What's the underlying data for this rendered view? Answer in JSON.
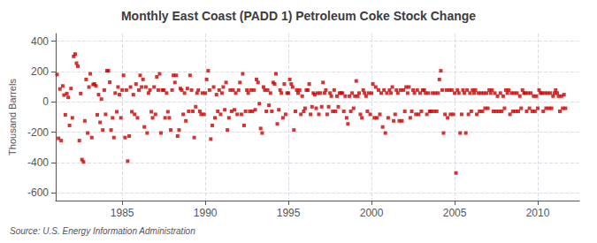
{
  "chart_data": {
    "type": "scatter",
    "title": "Monthly East Coast (PADD 1) Petroleum Coke Stock Change",
    "ylabel": "Thousand Barrels",
    "annotations": [
      "Source: U.S. Energy Information Administration"
    ],
    "color": "#cc0000",
    "marker": "square",
    "grid": true,
    "xlim": [
      1981.0,
      2012.5
    ],
    "ylim": [
      -650,
      450
    ],
    "xticks": [
      1985,
      1990,
      1995,
      2000,
      2005,
      2010
    ],
    "yticks": [
      -600,
      -400,
      -200,
      0,
      200,
      400
    ],
    "x": [
      1981.08,
      1981.17,
      1981.25,
      1981.33,
      1981.42,
      1981.5,
      1981.58,
      1981.67,
      1981.75,
      1981.83,
      1981.92,
      1982.0,
      1982.08,
      1982.17,
      1982.25,
      1982.33,
      1982.42,
      1982.5,
      1982.58,
      1982.67,
      1982.75,
      1982.83,
      1982.92,
      1983.0,
      1983.08,
      1983.17,
      1983.25,
      1983.33,
      1983.42,
      1983.5,
      1983.58,
      1983.67,
      1983.75,
      1983.83,
      1983.92,
      1984.0,
      1984.08,
      1984.17,
      1984.25,
      1984.33,
      1984.42,
      1984.5,
      1984.58,
      1984.67,
      1984.75,
      1984.83,
      1984.92,
      1985.0,
      1985.08,
      1985.17,
      1985.25,
      1985.33,
      1985.42,
      1985.5,
      1985.58,
      1985.67,
      1985.75,
      1985.83,
      1985.92,
      1986.0,
      1986.08,
      1986.17,
      1986.25,
      1986.33,
      1986.42,
      1986.5,
      1986.58,
      1986.67,
      1986.75,
      1986.83,
      1986.92,
      1987.0,
      1987.08,
      1987.17,
      1987.25,
      1987.33,
      1987.42,
      1987.5,
      1987.58,
      1987.67,
      1987.75,
      1987.83,
      1987.92,
      1988.0,
      1988.08,
      1988.17,
      1988.25,
      1988.33,
      1988.42,
      1988.5,
      1988.58,
      1988.67,
      1988.75,
      1988.83,
      1988.92,
      1989.0,
      1989.08,
      1989.17,
      1989.25,
      1989.33,
      1989.42,
      1989.5,
      1989.58,
      1989.67,
      1989.75,
      1989.83,
      1989.92,
      1990.0,
      1990.08,
      1990.17,
      1990.25,
      1990.33,
      1990.42,
      1990.5,
      1990.58,
      1990.67,
      1990.75,
      1990.83,
      1990.92,
      1991.0,
      1991.08,
      1991.17,
      1991.25,
      1991.33,
      1991.42,
      1991.5,
      1991.58,
      1991.67,
      1991.75,
      1991.83,
      1991.92,
      1992.0,
      1992.08,
      1992.17,
      1992.25,
      1992.33,
      1992.42,
      1992.5,
      1992.58,
      1992.67,
      1992.75,
      1992.83,
      1992.92,
      1993.0,
      1993.08,
      1993.17,
      1993.25,
      1993.33,
      1993.42,
      1993.5,
      1993.58,
      1993.67,
      1993.75,
      1993.83,
      1993.92,
      1994.0,
      1994.08,
      1994.17,
      1994.25,
      1994.33,
      1994.42,
      1994.5,
      1994.58,
      1994.67,
      1994.75,
      1994.83,
      1994.92,
      1995.0,
      1995.08,
      1995.17,
      1995.25,
      1995.33,
      1995.42,
      1995.5,
      1995.58,
      1995.67,
      1995.75,
      1995.83,
      1995.92,
      1996.0,
      1996.08,
      1996.17,
      1996.25,
      1996.33,
      1996.42,
      1996.5,
      1996.58,
      1996.67,
      1996.75,
      1996.83,
      1996.92,
      1997.0,
      1997.08,
      1997.17,
      1997.25,
      1997.33,
      1997.42,
      1997.5,
      1997.58,
      1997.67,
      1997.75,
      1997.83,
      1997.92,
      1998.0,
      1998.08,
      1998.17,
      1998.25,
      1998.33,
      1998.42,
      1998.5,
      1998.58,
      1998.67,
      1998.75,
      1998.83,
      1998.92,
      1999.0,
      1999.08,
      1999.17,
      1999.25,
      1999.33,
      1999.42,
      1999.5,
      1999.58,
      1999.67,
      1999.75,
      1999.83,
      1999.92,
      2000.0,
      2000.08,
      2000.17,
      2000.25,
      2000.33,
      2000.42,
      2000.5,
      2000.58,
      2000.67,
      2000.75,
      2000.83,
      2000.92,
      2001.0,
      2001.08,
      2001.17,
      2001.25,
      2001.33,
      2001.42,
      2001.5,
      2001.58,
      2001.67,
      2001.75,
      2001.83,
      2001.92,
      2002.0,
      2002.08,
      2002.17,
      2002.25,
      2002.33,
      2002.42,
      2002.5,
      2002.58,
      2002.67,
      2002.75,
      2002.83,
      2002.92,
      2003.0,
      2003.08,
      2003.17,
      2003.25,
      2003.33,
      2003.42,
      2003.5,
      2003.58,
      2003.67,
      2003.75,
      2003.83,
      2003.92,
      2004.0,
      2004.08,
      2004.17,
      2004.25,
      2004.33,
      2004.42,
      2004.5,
      2004.58,
      2004.67,
      2004.75,
      2004.83,
      2004.92,
      2005.0,
      2005.08,
      2005.17,
      2005.25,
      2005.33,
      2005.42,
      2005.5,
      2005.58,
      2005.67,
      2005.75,
      2005.83,
      2005.92,
      2006.0,
      2006.08,
      2006.17,
      2006.25,
      2006.33,
      2006.42,
      2006.5,
      2006.58,
      2006.67,
      2006.75,
      2006.83,
      2006.92,
      2007.0,
      2007.08,
      2007.17,
      2007.25,
      2007.33,
      2007.42,
      2007.5,
      2007.58,
      2007.67,
      2007.75,
      2007.83,
      2007.92,
      2008.0,
      2008.08,
      2008.17,
      2008.25,
      2008.33,
      2008.42,
      2008.5,
      2008.58,
      2008.67,
      2008.75,
      2008.83,
      2008.92,
      2009.0,
      2009.08,
      2009.17,
      2009.25,
      2009.33,
      2009.42,
      2009.5,
      2009.58,
      2009.67,
      2009.75,
      2009.83,
      2009.92,
      2010.0,
      2010.08,
      2010.17,
      2010.25,
      2010.33,
      2010.42,
      2010.5,
      2010.58,
      2010.67,
      2010.75,
      2010.83,
      2010.92,
      2011.0,
      2011.08,
      2011.17,
      2011.25,
      2011.33,
      2011.42,
      2011.5,
      2011.58,
      2011.67
    ],
    "values": [
      180,
      -240,
      85,
      -255,
      105,
      45,
      -85,
      55,
      30,
      -155,
      88,
      -105,
      300,
      315,
      255,
      235,
      -255,
      55,
      -380,
      -395,
      -125,
      148,
      -205,
      98,
      185,
      -235,
      115,
      118,
      105,
      -85,
      48,
      -135,
      18,
      -185,
      78,
      -82,
      205,
      205,
      130,
      -185,
      -105,
      -235,
      58,
      -65,
      98,
      48,
      -105,
      78,
      175,
      -235,
      78,
      -390,
      -225,
      98,
      -65,
      48,
      -82,
      118,
      -105,
      78,
      175,
      98,
      148,
      -165,
      98,
      -205,
      58,
      78,
      -65,
      -105,
      98,
      -82,
      165,
      78,
      185,
      -205,
      78,
      78,
      -105,
      58,
      -65,
      -105,
      -185,
      78,
      175,
      128,
      175,
      -225,
      -185,
      88,
      78,
      -82,
      58,
      -125,
      88,
      -62,
      175,
      78,
      -62,
      -235,
      -32,
      58,
      78,
      -62,
      -82,
      58,
      -82,
      58,
      148,
      205,
      78,
      -245,
      -155,
      98,
      -105,
      48,
      -62,
      78,
      -82,
      58,
      98,
      -52,
      128,
      -185,
      -105,
      78,
      -62,
      78,
      -52,
      58,
      -82,
      78,
      128,
      -82,
      185,
      -155,
      -62,
      78,
      58,
      -62,
      78,
      -62,
      78,
      -52,
      148,
      128,
      -12,
      -175,
      -205,
      98,
      78,
      -62,
      78,
      -22,
      58,
      -62,
      128,
      118,
      185,
      -145,
      -52,
      78,
      58,
      -105,
      118,
      -82,
      58,
      58,
      148,
      118,
      98,
      -185,
      -62,
      78,
      58,
      78,
      -82,
      38,
      -62,
      -42,
      78,
      78,
      118,
      -82,
      -32,
      58,
      48,
      -42,
      58,
      -82,
      58,
      -32,
      128,
      58,
      78,
      -82,
      -32,
      58,
      38,
      -62,
      78,
      -62,
      38,
      -32,
      58,
      58,
      58,
      -62,
      38,
      -105,
      -145,
      38,
      -62,
      58,
      -42,
      38,
      138,
      38,
      58,
      -82,
      -105,
      78,
      58,
      38,
      -62,
      58,
      -82,
      58,
      118,
      -105,
      98,
      -105,
      78,
      -82,
      58,
      -165,
      78,
      -205,
      58,
      -105,
      78,
      58,
      98,
      -125,
      -82,
      78,
      58,
      -125,
      78,
      -125,
      78,
      -62,
      98,
      58,
      98,
      -105,
      -62,
      78,
      58,
      -82,
      78,
      -82,
      58,
      -62,
      78,
      78,
      58,
      -82,
      58,
      -62,
      -62,
      58,
      -62,
      58,
      -62,
      58,
      148,
      205,
      78,
      -205,
      -82,
      78,
      -105,
      78,
      -82,
      78,
      -82,
      58,
      -468,
      78,
      58,
      -205,
      -82,
      78,
      58,
      -205,
      78,
      -82,
      58,
      -62,
      78,
      58,
      78,
      -82,
      58,
      -62,
      58,
      -62,
      58,
      -42,
      58,
      -42,
      78,
      58,
      78,
      -62,
      58,
      -62,
      38,
      -62,
      58,
      -62,
      38,
      -42,
      78,
      58,
      78,
      -82,
      58,
      -62,
      58,
      -62,
      58,
      -62,
      38,
      -42,
      78,
      58,
      58,
      -62,
      58,
      -42,
      58,
      -62,
      38,
      -62,
      38,
      -42,
      78,
      58,
      58,
      -62,
      58,
      -42,
      58,
      -42,
      58,
      -42,
      38,
      58,
      78,
      58,
      38,
      -62,
      38,
      -42,
      48,
      -42
    ]
  }
}
